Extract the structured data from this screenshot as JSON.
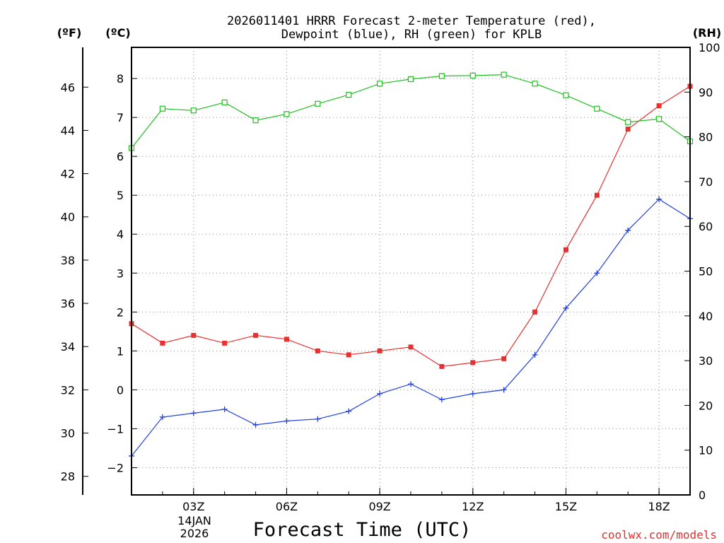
{
  "chart_data": {
    "type": "line",
    "title": [
      "2026011401 HRRR Forecast 2-meter Temperature (red),",
      "Dewpoint (blue), RH (green) for KPLB"
    ],
    "xlabel": "Forecast Time (UTC)",
    "date_label": [
      "14JAN",
      "2026"
    ],
    "credit": "coolwx.com/models",
    "units": {
      "fahrenheit": "(ºF)",
      "celsius": "(ºC)",
      "rh": "(RH)"
    },
    "hours": [
      1,
      2,
      3,
      4,
      5,
      6,
      7,
      8,
      9,
      10,
      11,
      12,
      13,
      14,
      15,
      16,
      17,
      18,
      19
    ],
    "x_ticks": [
      {
        "hour": 3,
        "label": "03Z"
      },
      {
        "hour": 6,
        "label": "06Z"
      },
      {
        "hour": 9,
        "label": "09Z"
      },
      {
        "hour": 12,
        "label": "12Z"
      },
      {
        "hour": 15,
        "label": "15Z"
      },
      {
        "hour": 18,
        "label": "18Z"
      }
    ],
    "xlim": [
      1,
      19
    ],
    "celsius_axis": {
      "ylim": [
        -2.7,
        8.8
      ],
      "ticks": [
        -2,
        -1,
        0,
        1,
        2,
        3,
        4,
        5,
        6,
        7,
        8
      ],
      "tick_labels": [
        "−2",
        "−1",
        "0",
        "1",
        "2",
        "3",
        "4",
        "5",
        "6",
        "7",
        "8"
      ]
    },
    "fahrenheit_axis": {
      "ticks": [
        28,
        30,
        32,
        34,
        36,
        38,
        40,
        42,
        44,
        46
      ],
      "tick_labels": [
        "28",
        "30",
        "32",
        "34",
        "36",
        "38",
        "40",
        "42",
        "44",
        "46"
      ]
    },
    "rh_axis": {
      "ylim": [
        0,
        100
      ],
      "ticks": [
        0,
        10,
        20,
        30,
        40,
        50,
        60,
        70,
        80,
        90,
        100
      ],
      "tick_labels": [
        "0",
        "10",
        "20",
        "30",
        "40",
        "50",
        "60",
        "70",
        "80",
        "90",
        "100"
      ]
    },
    "series": [
      {
        "name": "Temperature",
        "axis": "celsius",
        "color": "#e83030",
        "marker": "filled-square",
        "values": [
          1.7,
          1.2,
          1.4,
          1.2,
          1.4,
          1.3,
          1.0,
          0.9,
          1.0,
          1.1,
          0.6,
          0.7,
          0.8,
          2.0,
          3.6,
          5.0,
          6.7,
          7.3,
          7.8
        ]
      },
      {
        "name": "Dewpoint",
        "axis": "celsius",
        "color": "#2040e0",
        "marker": "plus",
        "values": [
          -1.7,
          -0.7,
          -0.6,
          -0.5,
          -0.9,
          -0.8,
          -0.75,
          -0.55,
          -0.1,
          0.15,
          -0.25,
          -0.1,
          0.0,
          0.9,
          2.1,
          3.0,
          4.1,
          4.9,
          4.4
        ]
      },
      {
        "name": "RH",
        "axis": "rh",
        "color": "#20c020",
        "marker": "open-square",
        "values": [
          77.5,
          86.3,
          85.9,
          87.7,
          83.7,
          85.1,
          87.4,
          89.4,
          91.9,
          92.9,
          93.6,
          93.7,
          93.9,
          91.9,
          89.3,
          86.3,
          83.3,
          84.0,
          79.0
        ]
      }
    ]
  }
}
